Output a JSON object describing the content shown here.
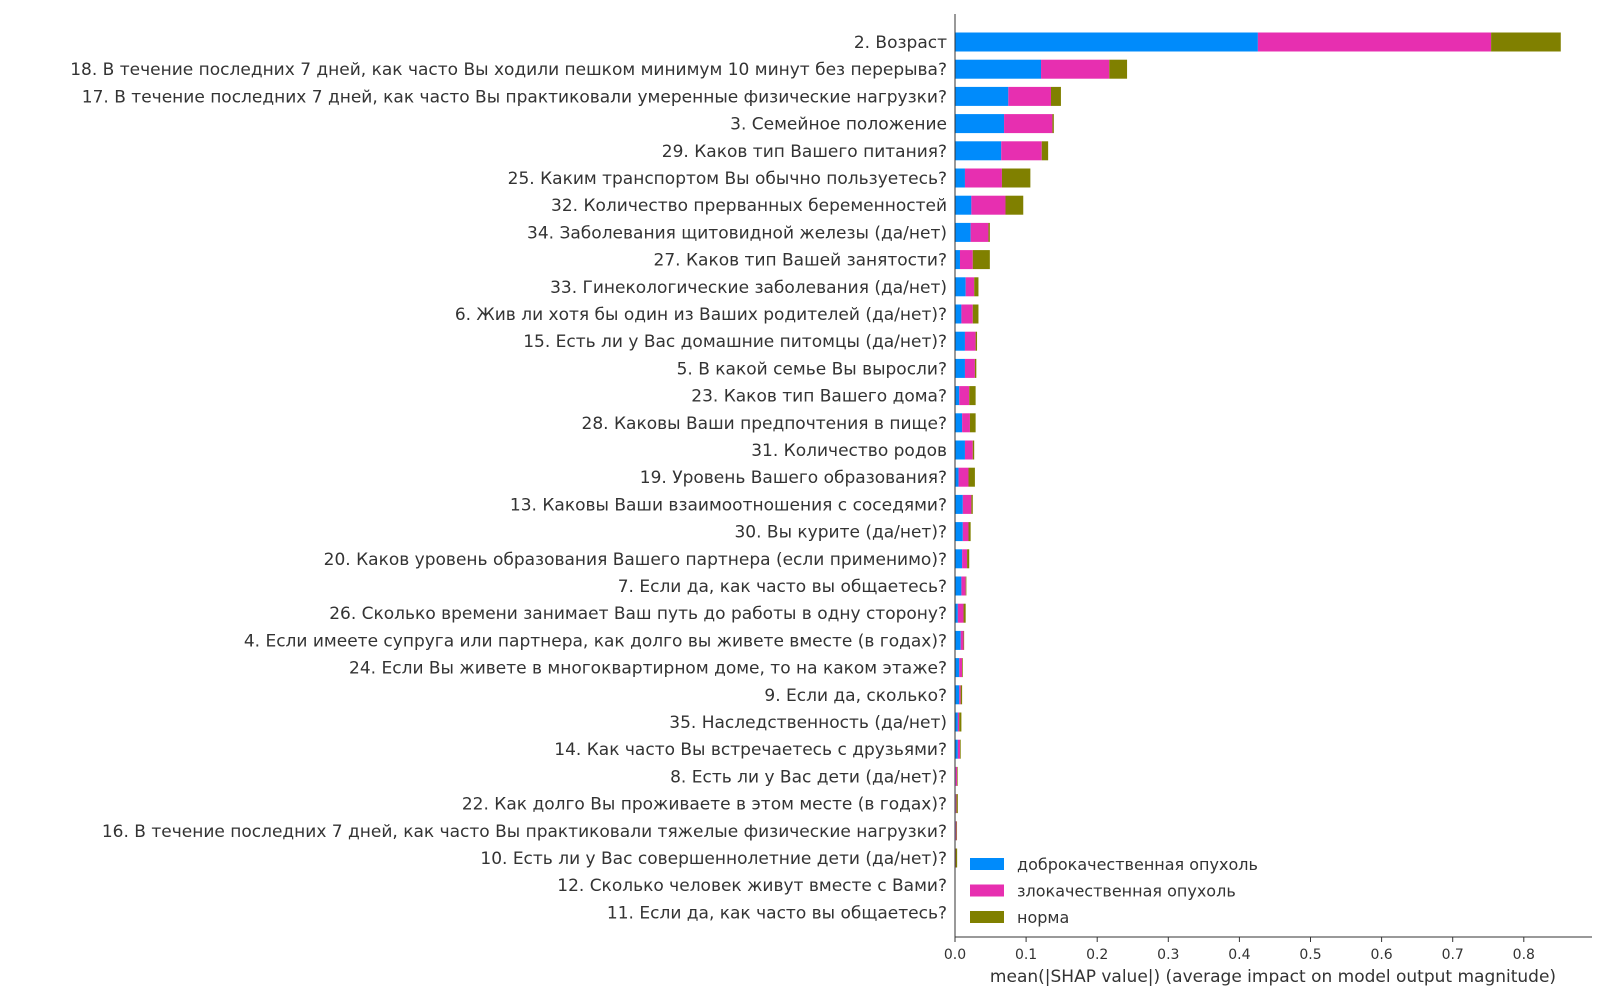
{
  "chart_data": {
    "type": "bar",
    "orientation": "horizontal",
    "stacked": true,
    "xlabel": "mean(|SHAP value|) (average impact on model output magnitude)",
    "xlim": [
      0,
      0.9
    ],
    "xticks": [
      "0.0",
      "0.1",
      "0.2",
      "0.3",
      "0.4",
      "0.5",
      "0.6",
      "0.7",
      "0.8"
    ],
    "legend_position": "bottom-right",
    "categories": [
      "2. Возраст",
      "18. В течение последних 7 дней, как часто Вы ходили пешком минимум 10 минут без перерыва?",
      "17. В течение последних 7 дней, как часто Вы практиковали умеренные физические нагрузки?",
      "3. Семейное положение",
      "29. Каков тип Вашего питания?",
      "25. Каким транспортом Вы обычно пользуетесь?",
      "32. Количество прерванных беременностей",
      "34. Заболевания щитовидной железы (да/нет)",
      "27. Каков тип Вашей занятости?",
      "33. Гинекологические заболевания (да/нет)",
      "6. Жив ли хотя бы один из Ваших родителей (да/нет)?",
      "15. Есть ли у Вас домашние питомцы (да/нет)?",
      "5. В какой семье Вы выросли?",
      "23. Каков тип Вашего дома?",
      "28. Каковы Ваши предпочтения в пище?",
      "31. Количество родов",
      "19. Уровень Вашего образования?",
      "13. Каковы Ваши взаимоотношения с соседями?",
      "30. Вы курите (да/нет)?",
      "20. Каков уровень образования Вашего партнера (если применимо)?",
      "7. Если да, как часто вы общаетесь?",
      "26. Сколько времени занимает Ваш путь до работы в одну сторону?",
      "4. Если имеете супруга или партнера, как долго вы живете вместе (в годах)?",
      "24. Если Вы живете в многоквартирном доме, то на каком этаже?",
      "9. Если да, сколько?",
      "35. Наследственность (да/нет)",
      "14. Как часто Вы встречаетесь с друзьями?",
      "8. Есть ли у Вас дети (да/нет)?",
      "22. Как долго Вы проживаете в этом месте (в годах)?",
      "16. В течение последних 7 дней, как часто Вы практиковали тяжелые физические нагрузки?",
      "10. Есть ли у Вас совершеннолетние дети (да/нет)?",
      "12. Сколько человек живут вместе с Вами?",
      "11. Если да, как часто вы общаетесь?"
    ],
    "series": [
      {
        "name": "доброкачественная опухоль",
        "color": "#008bfb",
        "values": [
          0.426,
          0.121,
          0.075,
          0.069,
          0.065,
          0.014,
          0.023,
          0.022,
          0.007,
          0.015,
          0.009,
          0.014,
          0.014,
          0.006,
          0.01,
          0.014,
          0.005,
          0.011,
          0.011,
          0.01,
          0.009,
          0.004,
          0.008,
          0.006,
          0.006,
          0.004,
          0.004,
          0.001,
          0.001,
          0.001,
          0.0005,
          0.0,
          0.0
        ]
      },
      {
        "name": "злокачественная опухоль",
        "color": "#e72fb0",
        "values": [
          0.328,
          0.096,
          0.06,
          0.068,
          0.057,
          0.052,
          0.048,
          0.025,
          0.018,
          0.012,
          0.016,
          0.015,
          0.014,
          0.014,
          0.011,
          0.011,
          0.014,
          0.012,
          0.008,
          0.007,
          0.006,
          0.008,
          0.004,
          0.004,
          0.002,
          0.002,
          0.003,
          0.002,
          0.001,
          0.001,
          0.0005,
          0.0,
          0.0
        ]
      },
      {
        "name": "норма",
        "color": "#808000",
        "values": [
          0.098,
          0.025,
          0.014,
          0.002,
          0.009,
          0.04,
          0.025,
          0.002,
          0.024,
          0.006,
          0.008,
          0.002,
          0.002,
          0.009,
          0.008,
          0.002,
          0.009,
          0.002,
          0.003,
          0.003,
          0.001,
          0.003,
          0.0005,
          0.001,
          0.002,
          0.003,
          0.001,
          0.0005,
          0.002,
          0.0005,
          0.002,
          0.0,
          0.0
        ]
      }
    ]
  }
}
